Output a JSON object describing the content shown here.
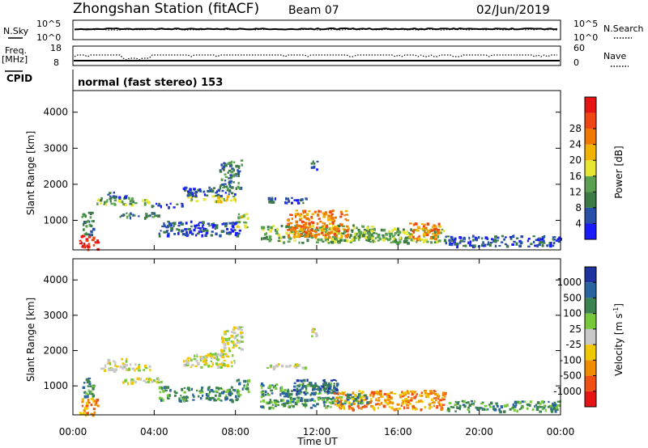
{
  "header": {
    "title": "Zhongshan Station (fitACF)",
    "beam": "Beam 07",
    "date": "02/Jun/2019"
  },
  "status_panels": {
    "noise": {
      "left_label": "N.Sky",
      "right_label": "N.Search",
      "left_ticks": [
        "10^5",
        "10^0"
      ],
      "right_ticks": [
        "10^5",
        "10^0"
      ]
    },
    "freq": {
      "left_label_1": "Freq.",
      "left_label_2": "[MHz]",
      "right_label": "Nave",
      "left_ticks": [
        "18",
        "8"
      ],
      "right_ticks": [
        "60",
        "0"
      ]
    },
    "cpid": {
      "label": "CPID",
      "text": "normal (fast stereo) 153"
    }
  },
  "colors": {
    "power": [
      "#1a1aff",
      "#2850a8",
      "#3c7a46",
      "#5aa050",
      "#e6e632",
      "#f0b400",
      "#f07800",
      "#f04614",
      "#e61414"
    ],
    "velocity": [
      "#1e32a0",
      "#2a64a0",
      "#3c8250",
      "#78c83c",
      "#c8c8c8",
      "#f0c800",
      "#f08c00",
      "#f05014",
      "#e61414"
    ]
  },
  "chart_data": [
    {
      "type": "heatmap",
      "name": "power",
      "ylabel": "Slant Range [km]",
      "xlabel": "",
      "xlim": [
        0,
        24
      ],
      "ylim": [
        180,
        4600
      ],
      "yticks": [
        1000,
        2000,
        3000,
        4000
      ],
      "xticks": [
        "00:00",
        "04:00",
        "08:00",
        "12:00",
        "16:00",
        "20:00",
        "00:00"
      ],
      "colorbar": {
        "label": "Power [dB]",
        "range": [
          0,
          32
        ],
        "ticks": [
          "4",
          "8",
          "12",
          "16",
          "20",
          "24",
          "28"
        ]
      },
      "regions": [
        {
          "t0": 0.3,
          "t1": 1.2,
          "r0": 200,
          "r1": 600,
          "level": 8
        },
        {
          "t0": 0.4,
          "t1": 1.0,
          "r0": 600,
          "r1": 1250,
          "level": 2
        },
        {
          "t0": 1.1,
          "t1": 3.8,
          "r0": 1450,
          "r1": 1650,
          "level": 3
        },
        {
          "t0": 1.6,
          "t1": 2.6,
          "r0": 1650,
          "r1": 1800,
          "level": 1
        },
        {
          "t0": 2.1,
          "t1": 4.3,
          "r0": 1100,
          "r1": 1250,
          "level": 2
        },
        {
          "t0": 3.8,
          "t1": 5.4,
          "r0": 1380,
          "r1": 1500,
          "level": 1
        },
        {
          "t0": 5.4,
          "t1": 8.0,
          "r0": 1550,
          "r1": 1700,
          "level": 4
        },
        {
          "t0": 5.4,
          "t1": 8.0,
          "r0": 1700,
          "r1": 1950,
          "level": 1
        },
        {
          "t0": 7.2,
          "t1": 8.3,
          "r0": 1900,
          "r1": 2700,
          "level": 2
        },
        {
          "t0": 4.2,
          "t1": 8.2,
          "r0": 600,
          "r1": 1000,
          "level": 1
        },
        {
          "t0": 8.0,
          "t1": 8.6,
          "r0": 800,
          "r1": 1200,
          "level": 4
        },
        {
          "t0": 9.2,
          "t1": 14.8,
          "r0": 400,
          "r1": 900,
          "level": 3
        },
        {
          "t0": 10.5,
          "t1": 13.5,
          "r0": 550,
          "r1": 1300,
          "level": 6
        },
        {
          "t0": 14.0,
          "t1": 18.3,
          "r0": 400,
          "r1": 800,
          "level": 3
        },
        {
          "t0": 16.5,
          "t1": 18.0,
          "r0": 500,
          "r1": 950,
          "level": 6
        },
        {
          "t0": 18.3,
          "t1": 24.0,
          "r0": 300,
          "r1": 600,
          "level": 1
        },
        {
          "t0": 9.5,
          "t1": 11.5,
          "r0": 1500,
          "r1": 1650,
          "level": 1
        },
        {
          "t0": 11.7,
          "t1": 12.0,
          "r0": 2400,
          "r1": 2700,
          "level": 1
        }
      ]
    },
    {
      "type": "heatmap",
      "name": "velocity",
      "ylabel": "Slant Range [km]",
      "xlabel": "Time UT",
      "xlim": [
        0,
        24
      ],
      "ylim": [
        180,
        4600
      ],
      "yticks": [
        1000,
        2000,
        3000,
        4000
      ],
      "xticks": [
        "00:00",
        "04:00",
        "08:00",
        "12:00",
        "16:00",
        "20:00",
        "00:00"
      ],
      "colorbar": {
        "label": "Velocity [m s^-1]",
        "ticks": [
          "1000",
          "500",
          "100",
          "25",
          "-25",
          "-100",
          "-500",
          "-1000"
        ]
      },
      "regions": [
        {
          "t0": 0.3,
          "t1": 1.2,
          "r0": 200,
          "r1": 700,
          "level": 6
        },
        {
          "t0": 0.4,
          "t1": 1.0,
          "r0": 700,
          "r1": 1250,
          "level": 2
        },
        {
          "t0": 1.1,
          "t1": 3.8,
          "r0": 1450,
          "r1": 1650,
          "level": 4
        },
        {
          "t0": 1.6,
          "t1": 2.6,
          "r0": 1650,
          "r1": 1800,
          "level": 4
        },
        {
          "t0": 2.1,
          "t1": 4.3,
          "r0": 1100,
          "r1": 1250,
          "level": 4
        },
        {
          "t0": 5.4,
          "t1": 8.0,
          "r0": 1550,
          "r1": 1950,
          "level": 4
        },
        {
          "t0": 7.2,
          "t1": 8.3,
          "r0": 1900,
          "r1": 2700,
          "level": 4
        },
        {
          "t0": 4.2,
          "t1": 8.2,
          "r0": 600,
          "r1": 1000,
          "level": 2
        },
        {
          "t0": 8.0,
          "t1": 8.6,
          "r0": 800,
          "r1": 1200,
          "level": 2
        },
        {
          "t0": 9.2,
          "t1": 13.0,
          "r0": 400,
          "r1": 1100,
          "level": 2
        },
        {
          "t0": 10.8,
          "t1": 13.0,
          "r0": 800,
          "r1": 1200,
          "level": 1
        },
        {
          "t0": 12.8,
          "t1": 18.3,
          "r0": 350,
          "r1": 900,
          "level": 6
        },
        {
          "t0": 13.0,
          "t1": 14.5,
          "r0": 500,
          "r1": 800,
          "level": 2
        },
        {
          "t0": 18.3,
          "t1": 24.0,
          "r0": 300,
          "r1": 600,
          "level": 2
        },
        {
          "t0": 9.5,
          "t1": 11.5,
          "r0": 1500,
          "r1": 1650,
          "level": 4
        },
        {
          "t0": 11.7,
          "t1": 12.0,
          "r0": 2400,
          "r1": 2700,
          "level": 4
        }
      ]
    }
  ]
}
